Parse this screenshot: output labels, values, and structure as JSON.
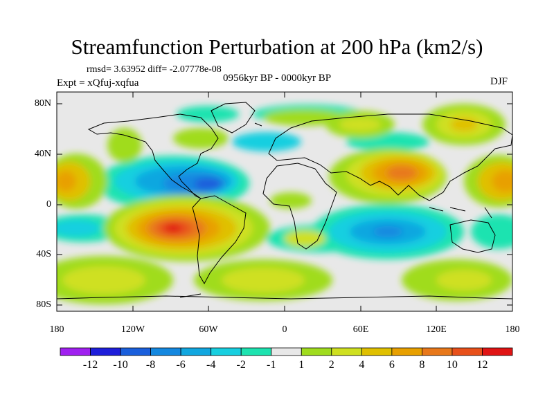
{
  "title": "Streamfunction Perturbation at 200 hPa (km2/s)",
  "stats_line": "rmsd= 3.63952 diff= -2.07778e-08",
  "experiment_line": "Expt = xQfuj-xqfua",
  "period_line": "0956kyr BP - 0000kyr BP",
  "season": "DJF",
  "latitude_labels": [
    "80N",
    "40N",
    "0",
    "40S",
    "80S"
  ],
  "longitude_labels": [
    "180",
    "120W",
    "60W",
    "0",
    "60E",
    "120E",
    "180"
  ],
  "colorbar": {
    "labels": [
      "-12",
      "-10",
      "-8",
      "-6",
      "-4",
      "-2",
      "-1",
      "1",
      "2",
      "4",
      "6",
      "8",
      "10",
      "12"
    ],
    "colors": [
      "#a020f0",
      "#1e1eda",
      "#1a5fdc",
      "#1488e0",
      "#11a7e0",
      "#17cfe0",
      "#1de3b0",
      "#e8e8e8",
      "#a0dc1e",
      "#cfe020",
      "#e0c000",
      "#e8a000",
      "#e8781a",
      "#e8501a",
      "#e01414"
    ]
  },
  "colors": {
    "background": "#e8e8e8",
    "coastline": "#000000"
  }
}
